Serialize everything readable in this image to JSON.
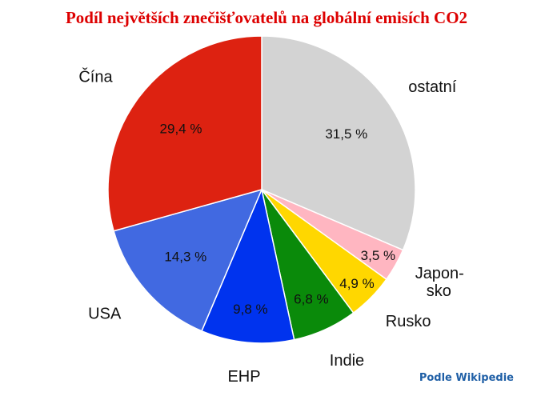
{
  "title": "Podíl největších znečišťovatelů na globální emisích CO2",
  "credit": "Podle Wikipedie",
  "colors": {
    "title": "#dd0000",
    "credit": "#1f5fa6"
  },
  "chart_data": {
    "type": "pie",
    "title": "Podíl největších znečišťovatelů na globální emisích CO2",
    "slices": [
      {
        "name": "ostatní",
        "value": 31.5,
        "label": "31,5 %",
        "color": "#d3d3d3"
      },
      {
        "name": "Japon-|sko",
        "value": 3.5,
        "label": "3,5 %",
        "color": "#ffb6c1"
      },
      {
        "name": "Rusko",
        "value": 4.9,
        "label": "4,9 %",
        "color": "#ffd700"
      },
      {
        "name": "Indie",
        "value": 6.8,
        "label": "6,8 %",
        "color": "#0a8a0a"
      },
      {
        "name": "EHP",
        "value": 9.8,
        "label": "9,8 %",
        "color": "#0033ee"
      },
      {
        "name": "USA",
        "value": 14.3,
        "label": "14,3 %",
        "color": "#4169e1"
      },
      {
        "name": "Čína",
        "value": 29.4,
        "label": "29,4 %",
        "color": "#dd2211"
      }
    ],
    "start": "12 o'clock",
    "direction": "clockwise"
  }
}
